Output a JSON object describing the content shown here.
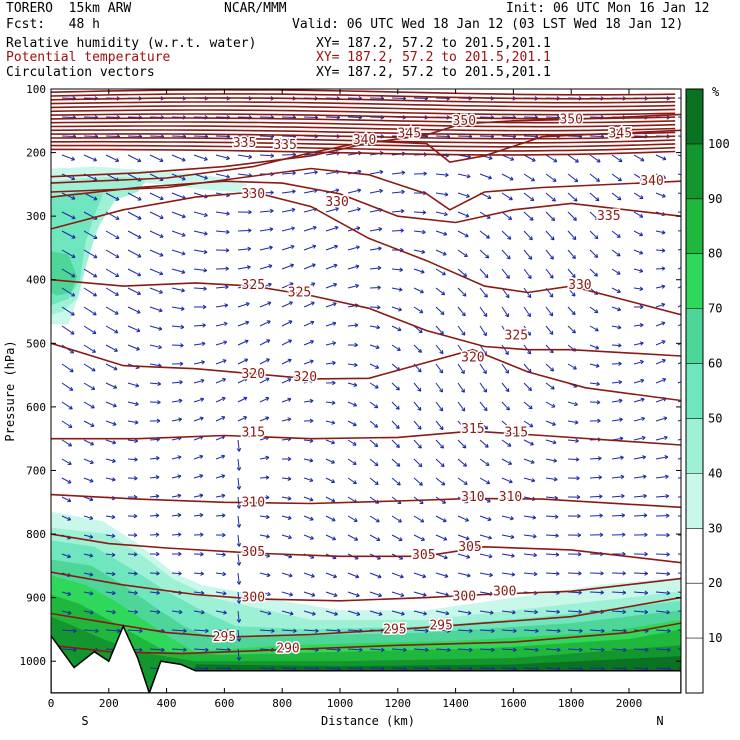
{
  "header": {
    "model": "TORERO  15km ARW",
    "org": "NCAR/MMM",
    "init": "Init: 06 UTC Mon 16 Jan 12",
    "fcst": "Fcst:   48 h",
    "valid": "Valid: 06 UTC Wed 18 Jan 12 (03 LST Wed 18 Jan 12)",
    "fields": [
      {
        "name": "Relative humidity (w.r.t. water)",
        "xy": "XY= 187.2, 57.2 to 201.5,201.1",
        "color": "#000000"
      },
      {
        "name": "Potential temperature",
        "xy": "XY= 187.2, 57.2 to 201.5,201.1",
        "color": "#a01010"
      },
      {
        "name": "Circulation vectors",
        "xy": "XY= 187.2, 57.2 to 201.5,201.1",
        "color": "#000000"
      }
    ]
  },
  "chart_data": {
    "type": "cross-section",
    "xlabel": "Distance (km)",
    "ylabel": "Pressure (hPa)",
    "x_ticks": [
      0,
      200,
      400,
      600,
      800,
      1000,
      1200,
      1400,
      1600,
      1800,
      2000
    ],
    "y_ticks": [
      100,
      200,
      300,
      400,
      500,
      600,
      700,
      800,
      900,
      1000
    ],
    "xlim": [
      0,
      2180
    ],
    "ylim": [
      1050,
      100
    ],
    "left_end_label": "S",
    "right_end_label": "N",
    "colorbar": {
      "unit": "%",
      "ticks": [
        10,
        20,
        30,
        40,
        50,
        60,
        70,
        80,
        90,
        100
      ],
      "levels": [
        {
          "from": 0,
          "to": 30,
          "color": "#ffffff"
        },
        {
          "from": 30,
          "to": 40,
          "color": "#c9f7ea"
        },
        {
          "from": 40,
          "to": 50,
          "color": "#9ff1d6"
        },
        {
          "from": 50,
          "to": 60,
          "color": "#6fe6bd"
        },
        {
          "from": 60,
          "to": 70,
          "color": "#4ed698"
        },
        {
          "from": 70,
          "to": 80,
          "color": "#2fd85a"
        },
        {
          "from": 80,
          "to": 90,
          "color": "#1fb83c"
        },
        {
          "from": 90,
          "to": 100,
          "color": "#12962d"
        },
        {
          "from": 100,
          "to": 110,
          "color": "#0a7322"
        }
      ]
    },
    "theta_labels": [
      {
        "text": "350",
        "x": 1430,
        "p": 150
      },
      {
        "text": "350",
        "x": 1800,
        "p": 148
      },
      {
        "text": "345",
        "x": 1240,
        "p": 170
      },
      {
        "text": "345",
        "x": 1970,
        "p": 170
      },
      {
        "text": "340",
        "x": 1085,
        "p": 180
      },
      {
        "text": "340",
        "x": 2080,
        "p": 245
      },
      {
        "text": "335",
        "x": 670,
        "p": 185
      },
      {
        "text": "335",
        "x": 810,
        "p": 188
      },
      {
        "text": "335",
        "x": 1930,
        "p": 300
      },
      {
        "text": "330",
        "x": 700,
        "p": 265
      },
      {
        "text": "330",
        "x": 990,
        "p": 278
      },
      {
        "text": "330",
        "x": 1830,
        "p": 408
      },
      {
        "text": "325",
        "x": 700,
        "p": 408
      },
      {
        "text": "325",
        "x": 860,
        "p": 420
      },
      {
        "text": "325",
        "x": 1610,
        "p": 488
      },
      {
        "text": "320",
        "x": 700,
        "p": 548
      },
      {
        "text": "320",
        "x": 880,
        "p": 553
      },
      {
        "text": "320",
        "x": 1460,
        "p": 522
      },
      {
        "text": "315",
        "x": 700,
        "p": 640
      },
      {
        "text": "315",
        "x": 1460,
        "p": 635
      },
      {
        "text": "315",
        "x": 1610,
        "p": 640
      },
      {
        "text": "310",
        "x": 700,
        "p": 750
      },
      {
        "text": "310",
        "x": 1460,
        "p": 742
      },
      {
        "text": "310",
        "x": 1590,
        "p": 742
      },
      {
        "text": "305",
        "x": 700,
        "p": 828
      },
      {
        "text": "305",
        "x": 1290,
        "p": 833
      },
      {
        "text": "305",
        "x": 1450,
        "p": 820
      },
      {
        "text": "300",
        "x": 700,
        "p": 900
      },
      {
        "text": "300",
        "x": 1430,
        "p": 898
      },
      {
        "text": "300",
        "x": 1570,
        "p": 890
      },
      {
        "text": "295",
        "x": 600,
        "p": 962
      },
      {
        "text": "295",
        "x": 1190,
        "p": 950
      },
      {
        "text": "295",
        "x": 1350,
        "p": 944
      },
      {
        "text": "290",
        "x": 820,
        "p": 980
      }
    ]
  }
}
